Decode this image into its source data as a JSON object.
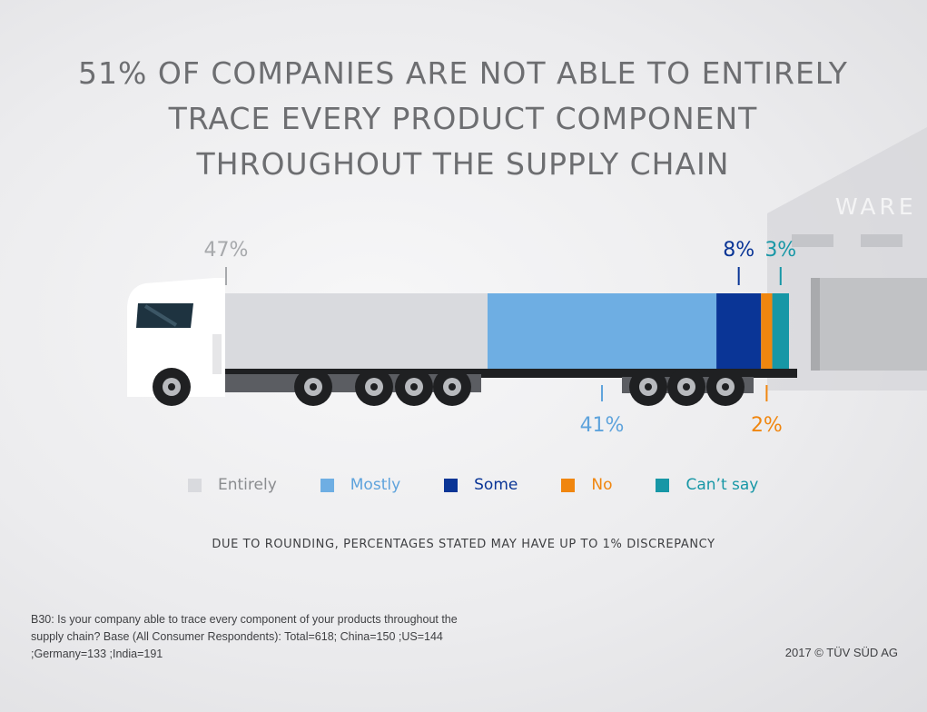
{
  "chart_data": {
    "type": "bar",
    "title": "51% OF COMPANIES ARE NOT ABLE TO ENTIRELY TRACE EVERY PRODUCT COMPONENT THROUGHOUT THE SUPPLY CHAIN",
    "orientation": "horizontal-stacked",
    "unit": "%",
    "series": [
      {
        "name": "Entirely",
        "value": 47,
        "label": "47%",
        "color": "#d9dade",
        "label_color": "#a7a9ac",
        "label_side": "top"
      },
      {
        "name": "Mostly",
        "value": 41,
        "label": "41%",
        "color": "#6eaee3",
        "label_color": "#5ea3dc",
        "label_side": "bottom"
      },
      {
        "name": "Some",
        "value": 8,
        "label": "8%",
        "color": "#0a3596",
        "label_color": "#0a3596",
        "label_side": "top"
      },
      {
        "name": "No",
        "value": 2,
        "label": "2%",
        "color": "#f0860f",
        "label_color": "#f0860f",
        "label_side": "bottom"
      },
      {
        "name": "Can’t say",
        "value": 3,
        "label": "3%",
        "color": "#1797a6",
        "label_color": "#1797a6",
        "label_side": "top"
      }
    ],
    "legend_placement": "bottom",
    "grid": false
  },
  "background": {
    "warehouse_sign": "WARE"
  },
  "note": "DUE TO ROUNDING, PERCENTAGES STATED MAY HAVE UP TO 1% DISCREPANCY",
  "footnote": "B30: Is your company able to trace every component of your products throughout the supply chain? Base (All Consumer Respondents): Total=618; China=150 ;US=144 ;Germany=133 ;India=191",
  "copyright": "2017 © TÜV SÜD AG"
}
